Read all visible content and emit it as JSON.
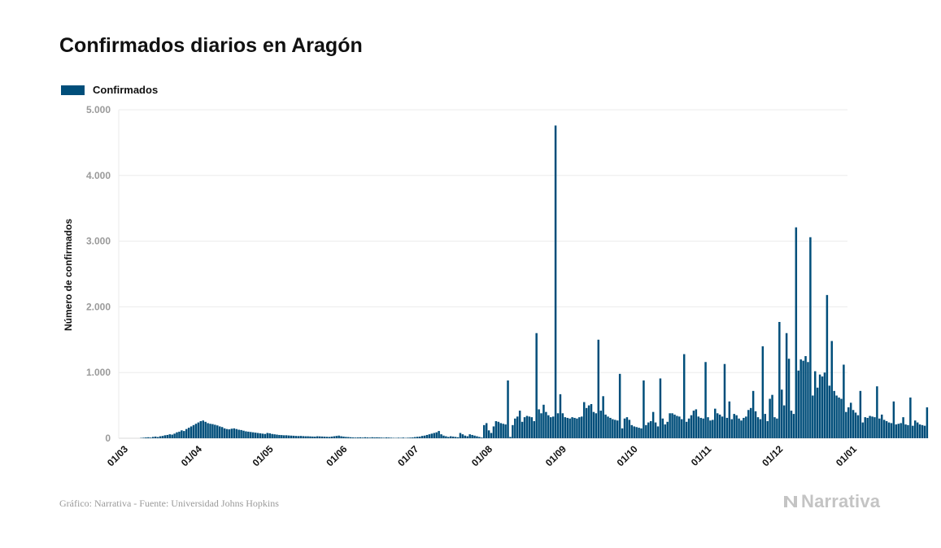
{
  "title": "Confirmados diarios en Aragón",
  "legend": {
    "label": "Confirmados",
    "color": "#004e7a"
  },
  "footer": "Gráfico: Narrativa - Fuente: Universidad Johns Hopkins",
  "brand": {
    "name": "Narrativa",
    "color": "#c4c4c4"
  },
  "chart_data": {
    "type": "bar",
    "title": "Confirmados diarios en Aragón",
    "xlabel": "",
    "ylabel": "Número de confirmados",
    "ylim": [
      0,
      5000
    ],
    "yticks": [
      0,
      1000,
      2000,
      3000,
      4000,
      5000
    ],
    "ytick_labels": [
      "0",
      "1.000",
      "2.000",
      "3.000",
      "4.000",
      "5.000"
    ],
    "xticks": [
      "01/03",
      "01/04",
      "01/05",
      "01/06",
      "01/07",
      "01/08",
      "01/09",
      "01/10",
      "01/11",
      "01/12",
      "01/01"
    ],
    "x_start": "2020-03-01",
    "grid": true,
    "legend_position": "top-left",
    "series": [
      {
        "name": "Confirmados",
        "color": "#004e7a",
        "values": [
          0,
          0,
          0,
          0,
          0,
          0,
          0,
          0,
          0,
          5,
          8,
          12,
          15,
          10,
          20,
          25,
          18,
          30,
          35,
          45,
          50,
          60,
          55,
          70,
          90,
          100,
          120,
          110,
          140,
          160,
          180,
          200,
          220,
          240,
          260,
          270,
          250,
          230,
          220,
          215,
          205,
          195,
          180,
          170,
          150,
          140,
          135,
          145,
          150,
          140,
          130,
          125,
          115,
          105,
          100,
          95,
          90,
          85,
          80,
          75,
          70,
          65,
          80,
          75,
          65,
          60,
          55,
          50,
          48,
          45,
          45,
          42,
          40,
          38,
          35,
          33,
          35,
          32,
          30,
          30,
          28,
          26,
          25,
          30,
          28,
          26,
          24,
          22,
          20,
          25,
          30,
          35,
          40,
          30,
          25,
          20,
          18,
          15,
          12,
          10,
          12,
          14,
          10,
          15,
          12,
          10,
          15,
          12,
          14,
          12,
          10,
          8,
          12,
          10,
          8,
          6,
          5,
          8,
          6,
          10,
          5,
          8,
          10,
          12,
          18,
          22,
          25,
          35,
          40,
          50,
          60,
          70,
          80,
          90,
          110,
          60,
          40,
          30,
          20,
          30,
          25,
          20,
          15,
          80,
          60,
          40,
          30,
          60,
          50,
          40,
          30,
          20,
          10,
          200,
          230,
          120,
          80,
          180,
          260,
          250,
          230,
          220,
          210,
          880,
          20,
          200,
          300,
          330,
          420,
          250,
          320,
          340,
          330,
          320,
          260,
          1600,
          440,
          380,
          510,
          400,
          350,
          320,
          330,
          4760,
          380,
          670,
          380,
          320,
          310,
          300,
          320,
          310,
          300,
          320,
          330,
          550,
          460,
          500,
          520,
          400,
          380,
          1500,
          420,
          640,
          360,
          330,
          310,
          290,
          280,
          270,
          980,
          150,
          300,
          320,
          280,
          200,
          180,
          170,
          160,
          150,
          880,
          200,
          240,
          260,
          400,
          240,
          180,
          910,
          300,
          210,
          250,
          380,
          380,
          360,
          340,
          330,
          290,
          1280,
          250,
          300,
          350,
          420,
          440,
          330,
          310,
          300,
          1160,
          320,
          270,
          280,
          450,
          380,
          360,
          330,
          1130,
          310,
          560,
          290,
          370,
          350,
          300,
          270,
          310,
          330,
          430,
          460,
          720,
          410,
          320,
          290,
          1400,
          370,
          260,
          600,
          660,
          320,
          300,
          1770,
          740,
          500,
          1600,
          1210,
          420,
          370,
          3210,
          1030,
          1200,
          1180,
          1250,
          1160,
          3060,
          650,
          1020,
          770,
          970,
          940,
          1000,
          2180,
          800,
          1480,
          720,
          650,
          620,
          600,
          1120,
          400,
          470,
          540,
          430,
          390,
          350,
          720,
          240,
          320,
          310,
          340,
          330,
          320,
          790,
          300,
          360,
          280,
          260,
          240,
          230,
          560,
          210,
          220,
          230,
          320,
          210,
          200,
          620,
          190,
          270,
          240,
          210,
          200,
          190,
          470
        ]
      }
    ]
  }
}
